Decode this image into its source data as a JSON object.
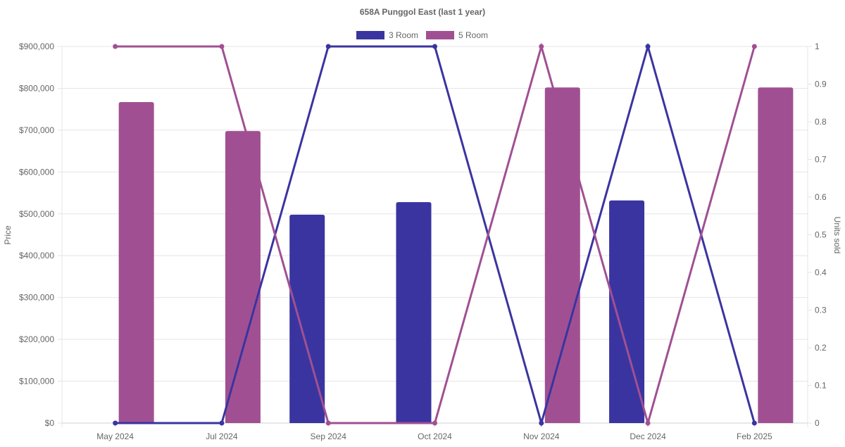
{
  "chart_data": {
    "type": "bar+line",
    "title": "658A Punggol East (last 1 year)",
    "categories": [
      "May 2024",
      "Jul 2024",
      "Sep 2024",
      "Oct 2024",
      "Nov 2024",
      "Dec 2024",
      "Feb 2025"
    ],
    "ylabel": "Price",
    "y2label": "Units sold",
    "ylim": [
      0,
      900000
    ],
    "y2lim": [
      0,
      1
    ],
    "yticks": [
      "$0",
      "$100,000",
      "$200,000",
      "$300,000",
      "$400,000",
      "$500,000",
      "$600,000",
      "$700,000",
      "$800,000",
      "$900,000"
    ],
    "y2ticks": [
      "0",
      "0.1",
      "0.2",
      "0.3",
      "0.4",
      "0.5",
      "0.6",
      "0.7",
      "0.8",
      "0.9",
      "1"
    ],
    "legend_position": "top",
    "grid": true,
    "series": [
      {
        "name": "3 Room",
        "color": "#3a34a0",
        "price": [
          null,
          null,
          498000,
          528000,
          null,
          532000,
          null
        ],
        "units": [
          0,
          0,
          1,
          1,
          0,
          1,
          0
        ]
      },
      {
        "name": "5 Room",
        "color": "#a05092",
        "price": [
          767000,
          698000,
          null,
          null,
          802000,
          null,
          802000
        ],
        "units": [
          1,
          1,
          0,
          0,
          1,
          0,
          1
        ]
      }
    ]
  }
}
